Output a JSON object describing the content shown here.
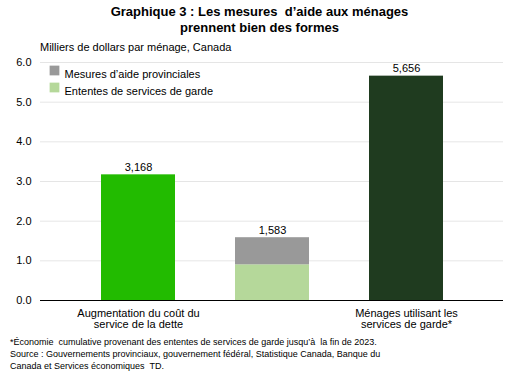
{
  "chart_data": {
    "type": "bar",
    "stacked": true,
    "title": "Graphique 3 : Les mesures  d’aide aux ménages\nprennent bien des formes",
    "subtitle": "Milliers de dollars par ménage, Canada",
    "categories": [
      "Augmentation du coût du\nservice de la dette",
      null,
      "Ménages utilisant les\nservices de garde*"
    ],
    "values": [
      3.168,
      null,
      5.656
    ],
    "colors": [
      "#22bb00",
      null,
      "#1f3b1f"
    ],
    "series": [
      {
        "name": "Ententes de services de garde",
        "color": "#b5d89a",
        "values": [
          null,
          0.9,
          null
        ]
      },
      {
        "name": "Mesures d’aide provinciales",
        "color": "#999999",
        "values": [
          null,
          0.683,
          null
        ]
      }
    ],
    "totals": [
      3.168,
      1.583,
      5.656
    ],
    "total_labels": [
      "3,168",
      "1,583",
      "5,656"
    ],
    "data_labels": true,
    "ylim": [
      0,
      6
    ],
    "yticks": [
      0,
      1,
      2,
      3,
      4,
      5,
      6
    ],
    "grid": true,
    "legend": "upper left",
    "notes": [
      "*Économie  cumulative provenant des ententes de services de garde jusqu’à  la fin de 2023.",
      "Source : Gouvernements provinciaux, gouvernement fédéral, Statistique Canada, Banque du",
      "Canada et Services économiques  TD."
    ]
  }
}
